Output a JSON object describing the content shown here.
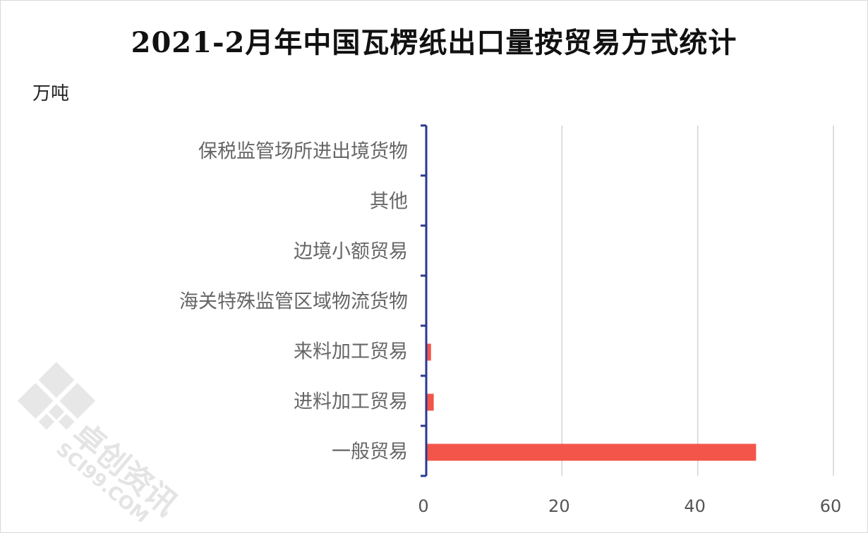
{
  "chart_data": {
    "type": "bar",
    "orientation": "horizontal",
    "title": "2021-2月年中国瓦楞纸出口量按贸易方式统计",
    "unit_label": "万吨",
    "categories": [
      "保税监管场所进出境货物",
      "其他",
      "边境小额贸易",
      "海关特殊监管区域物流货物",
      "来料加工贸易",
      "进料加工贸易",
      "一般贸易"
    ],
    "values": [
      0,
      0,
      0,
      0,
      0.6,
      1.0,
      48.5
    ],
    "xlim": [
      0,
      60
    ],
    "xticks": [
      0,
      20,
      40,
      60
    ],
    "grid": "vertical",
    "bar_color": "#f4554a"
  },
  "watermark": {
    "brand": "卓创资讯",
    "site": "SCI99.COM"
  }
}
